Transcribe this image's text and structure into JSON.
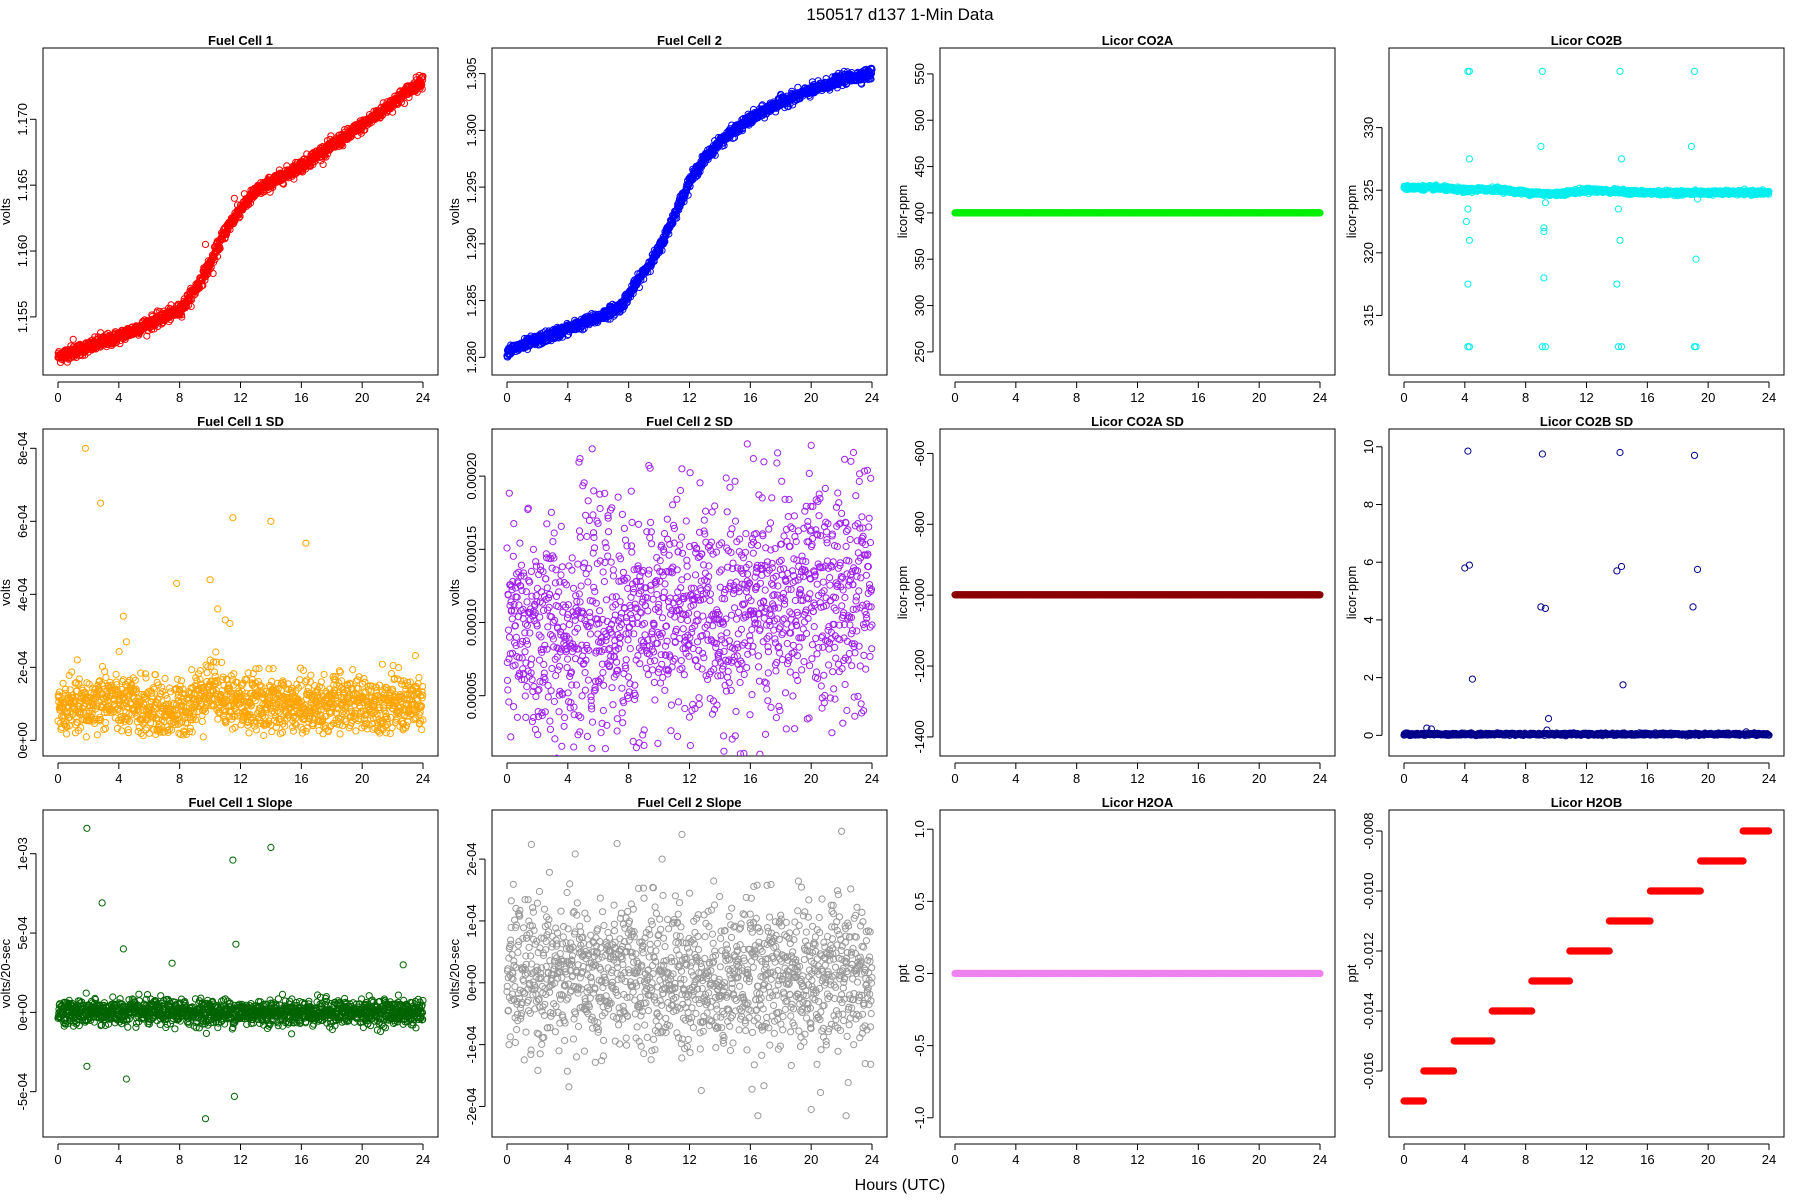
{
  "figure": {
    "title": "150517   d137   1-Min Data",
    "xlabel": "Hours (UTC)"
  },
  "chart_data": [
    {
      "type": "scatter",
      "title": "Fuel Cell 1",
      "ylabel": "volts",
      "color": "#ff0000",
      "xlim": [
        0,
        24
      ],
      "ylim": [
        1.1515,
        1.1745
      ],
      "xticks": [
        0,
        4,
        8,
        12,
        16,
        20,
        24
      ],
      "yticks": [
        1.155,
        1.16,
        1.165,
        1.17
      ],
      "ytick_labels": [
        "1.155",
        "1.160",
        "1.165",
        "1.170"
      ],
      "series": [
        {
          "pattern": "curve",
          "x": [
            0,
            2,
            4,
            6,
            8,
            9,
            10,
            11,
            12,
            13,
            16,
            20,
            24
          ],
          "y": [
            1.152,
            1.1527,
            1.1535,
            1.1545,
            1.1555,
            1.157,
            1.159,
            1.1615,
            1.1632,
            1.1645,
            1.1665,
            1.1695,
            1.173
          ],
          "noise": 0.00025
        }
      ],
      "outliers": {
        "x": [
          1.0,
          2.8,
          9.7,
          11.6,
          11.8,
          10.2
        ],
        "y": [
          1.1533,
          1.1538,
          1.1605,
          1.164,
          1.1635,
          1.1583
        ]
      }
    },
    {
      "type": "scatter",
      "title": "Fuel Cell 2",
      "ylabel": "volts",
      "color": "#0000ff",
      "xlim": [
        0,
        24
      ],
      "ylim": [
        1.2795,
        1.3062
      ],
      "xticks": [
        0,
        4,
        8,
        12,
        16,
        20,
        24
      ],
      "yticks": [
        1.28,
        1.285,
        1.29,
        1.295,
        1.3,
        1.305
      ],
      "ytick_labels": [
        "1.280",
        "1.285",
        "1.290",
        "1.295",
        "1.300",
        "1.305"
      ],
      "series": [
        {
          "pattern": "curve",
          "x": [
            0,
            2,
            4,
            6,
            7.5,
            8,
            9,
            10,
            11,
            12,
            13,
            14,
            16,
            18,
            20,
            22,
            24
          ],
          "y": [
            1.2805,
            1.2815,
            1.2825,
            1.2835,
            1.2845,
            1.2855,
            1.2875,
            1.2895,
            1.2925,
            1.2955,
            1.2975,
            1.299,
            1.301,
            1.3025,
            1.3035,
            1.3045,
            1.305
          ],
          "noise": 0.00025
        }
      ],
      "outliers": {
        "x": [],
        "y": []
      }
    },
    {
      "type": "scatter",
      "title": "Licor CO2A",
      "ylabel": "licor-ppm",
      "color": "#00ee00",
      "xlim": [
        0,
        24
      ],
      "ylim": [
        238,
        565
      ],
      "xticks": [
        0,
        4,
        8,
        12,
        16,
        20,
        24
      ],
      "yticks": [
        250,
        300,
        350,
        400,
        450,
        500,
        550
      ],
      "ytick_labels": [
        "250",
        "300",
        "350",
        "400",
        "450",
        "500",
        "550"
      ],
      "series": [
        {
          "pattern": "constant",
          "x": [
            0,
            24
          ],
          "y": [
            400,
            400
          ],
          "noise": 0
        }
      ],
      "outliers": {
        "x": [],
        "y": []
      }
    },
    {
      "type": "scatter",
      "title": "Licor CO2B",
      "ylabel": "licor-ppm",
      "color": "#00eeee",
      "xlim": [
        0,
        24
      ],
      "ylim": [
        311.2,
        335.4
      ],
      "xticks": [
        0,
        4,
        8,
        12,
        16,
        20,
        24
      ],
      "yticks": [
        315,
        320,
        325,
        330
      ],
      "ytick_labels": [
        "315",
        "320",
        "325",
        "330"
      ],
      "series": [
        {
          "pattern": "curve",
          "x": [
            0,
            2,
            4,
            6,
            8,
            10,
            12,
            14,
            16,
            18,
            20,
            24
          ],
          "y": [
            325.2,
            325.2,
            325.0,
            325.1,
            324.8,
            324.7,
            325.0,
            324.9,
            324.8,
            324.8,
            324.8,
            324.8
          ],
          "noise": 0.08
        }
      ],
      "outliers": {
        "x": [
          4.2,
          4.2,
          4.3,
          4.3,
          4.2,
          4.1,
          4.2,
          4.3,
          4.3,
          9.1,
          9.1,
          9.2,
          9.2,
          9.2,
          9.3,
          9.3,
          9.0,
          14.1,
          14.2,
          14.2,
          14.1,
          14.3,
          14.3,
          14.0,
          19.1,
          19.1,
          19.2,
          19.3,
          19.2,
          18.9
        ],
        "y": [
          312.5,
          334.5,
          321.0,
          327.5,
          323.5,
          322.5,
          317.5,
          312.5,
          334.5,
          312.5,
          334.5,
          322.0,
          318.0,
          321.7,
          324.0,
          312.5,
          328.5,
          312.5,
          334.5,
          321.0,
          323.5,
          327.5,
          312.5,
          317.5,
          312.5,
          334.5,
          319.5,
          324.3,
          312.5,
          328.5
        ]
      }
    },
    {
      "type": "scatter",
      "title": "Fuel Cell 1 SD",
      "ylabel": "volts",
      "color": "#ffa500",
      "xlim": [
        0,
        24
      ],
      "ylim": [
        -1e-05,
        0.00082
      ],
      "xticks": [
        0,
        4,
        8,
        12,
        16,
        20,
        24
      ],
      "yticks": [
        0,
        0.0002,
        0.0004,
        0.0006,
        0.0008
      ],
      "ytick_labels": [
        "0e+00",
        "2e-04",
        "4e-04",
        "6e-04",
        "8e-04"
      ],
      "series": [
        {
          "pattern": "curve",
          "x": [
            0,
            2,
            3,
            4,
            6,
            8,
            9,
            10,
            11,
            12,
            16,
            20,
            24
          ],
          "y": [
            8.5e-05,
            9e-05,
            0.00012,
            0.0001,
            8.5e-05,
            8e-05,
            0.00011,
            0.00015,
            0.00012,
            0.0001,
            9.5e-05,
            0.0001,
            0.0001
          ],
          "noise": 4e-05
        }
      ],
      "outliers": {
        "x": [
          1.8,
          2.8,
          11.5,
          14.0,
          16.3,
          10.0,
          10.5,
          4.3,
          4.5,
          11.0,
          7.8,
          11.3
        ],
        "y": [
          0.0008,
          0.00065,
          0.00061,
          0.0006,
          0.00054,
          0.00044,
          0.00036,
          0.00034,
          0.00027,
          0.00033,
          0.00043,
          0.00032
        ]
      }
    },
    {
      "type": "scatter",
      "title": "Fuel Cell 2 SD",
      "ylabel": "volts",
      "color": "#a020f0",
      "xlim": [
        0,
        24
      ],
      "ylim": [
        1.7e-05,
        0.000224
      ],
      "xticks": [
        0,
        4,
        8,
        12,
        16,
        20,
        24
      ],
      "yticks": [
        5e-05,
        0.0001,
        0.00015,
        0.0002
      ],
      "ytick_labels": [
        "0.00005",
        "0.00010",
        "0.00015",
        "0.00020"
      ],
      "series": [
        {
          "pattern": "scatter",
          "x": [
            0,
            6,
            12,
            18,
            24
          ],
          "y": [
            9e-05,
            9.8e-05,
            0.000105,
            0.000112,
            0.00012
          ],
          "noise": 3.8e-05
        }
      ],
      "outliers": {
        "x": [
          15.8,
          20,
          16.2,
          4.8,
          11.5,
          5.7
        ],
        "y": [
          0.000222,
          0.000221,
          0.000212,
          0.000212,
          0.000205,
          0.00019
        ]
      }
    },
    {
      "type": "scatter",
      "title": "Licor CO2A SD",
      "ylabel": "licor-ppm",
      "color": "#8b0000",
      "xlim": [
        0,
        24
      ],
      "ylim": [
        -1420,
        -565
      ],
      "xticks": [
        0,
        4,
        8,
        12,
        16,
        20,
        24
      ],
      "yticks": [
        -1400,
        -1200,
        -1000,
        -800,
        -600
      ],
      "ytick_labels": [
        "-1400",
        "-1200",
        "-1000",
        "-800",
        "-600"
      ],
      "series": [
        {
          "pattern": "constant",
          "x": [
            0,
            24
          ],
          "y": [
            -999,
            -999
          ],
          "noise": 0
        }
      ],
      "outliers": {
        "x": [],
        "y": []
      }
    },
    {
      "type": "scatter",
      "title": "Licor CO2B SD",
      "ylabel": "licor-ppm",
      "color": "#00008b",
      "xlim": [
        0,
        24
      ],
      "ylim": [
        -0.3,
        10.2
      ],
      "xticks": [
        0,
        4,
        8,
        12,
        16,
        20,
        24
      ],
      "yticks": [
        0,
        2,
        4,
        6,
        8,
        10
      ],
      "ytick_labels": [
        "0",
        "2",
        "4",
        "6",
        "8",
        "10"
      ],
      "series": [
        {
          "pattern": "constant",
          "x": [
            0,
            24
          ],
          "y": [
            0.04,
            0.04
          ],
          "noise": 0.02
        }
      ],
      "outliers": {
        "x": [
          4.2,
          9.1,
          14.2,
          19.1,
          4.0,
          4.3,
          14.0,
          14.3,
          19.3,
          9.0,
          9.3,
          19.0,
          4.5,
          14.4,
          9.5,
          1.5,
          1.8,
          9.4,
          22.5
        ],
        "y": [
          9.85,
          9.75,
          9.8,
          9.7,
          5.8,
          5.9,
          5.7,
          5.85,
          5.75,
          4.45,
          4.4,
          4.45,
          1.95,
          1.75,
          0.58,
          0.25,
          0.22,
          0.18,
          0.12
        ]
      }
    },
    {
      "type": "scatter",
      "title": "Fuel Cell 1 Slope",
      "ylabel": "volts/20-sec",
      "color": "#006400",
      "xlim": [
        0,
        24
      ],
      "ylim": [
        -0.00071,
        0.0012
      ],
      "xticks": [
        0,
        4,
        8,
        12,
        16,
        20,
        24
      ],
      "yticks": [
        -0.0005,
        0,
        0.0005,
        0.001
      ],
      "ytick_labels": [
        "-5e-04",
        "0e+00",
        "5e-04",
        "1e-03"
      ],
      "series": [
        {
          "pattern": "scatter",
          "x": [
            0,
            24
          ],
          "y": [
            0,
            0
          ],
          "noise": 4e-05
        }
      ],
      "outliers": {
        "x": [
          1.9,
          11.5,
          14.0,
          2.9,
          4.3,
          7.5,
          11.7,
          1.9,
          9.7,
          4.5,
          11.6,
          22.7
        ],
        "y": [
          0.00116,
          0.00096,
          0.00104,
          0.00069,
          0.0004,
          0.00031,
          0.00043,
          -0.00034,
          -0.00067,
          -0.00042,
          -0.00053,
          0.0003
        ]
      }
    },
    {
      "type": "scatter",
      "title": "Fuel Cell 2 Slope",
      "ylabel": "volts/20-sec",
      "color": "#999999",
      "xlim": [
        0,
        24
      ],
      "ylim": [
        -0.00023,
        0.00026
      ],
      "xticks": [
        0,
        4,
        8,
        12,
        16,
        20,
        24
      ],
      "yticks": [
        -0.0002,
        -0.0001,
        0,
        0.0001,
        0.0002
      ],
      "ytick_labels": [
        "-2e-04",
        "-1e-04",
        "0e+00",
        "1e-04",
        "2e-04"
      ],
      "series": [
        {
          "pattern": "scatter",
          "x": [
            0,
            6,
            12,
            18,
            24
          ],
          "y": [
            1e-05,
            1e-05,
            1e-05,
            1e-05,
            1e-05
          ],
          "noise": 6e-05
        }
      ],
      "outliers": {
        "x": [
          11.5,
          22,
          16.5,
          20,
          22.3,
          10.2
        ],
        "y": [
          0.00024,
          0.000245,
          -0.000215,
          -0.000205,
          -0.000215,
          0.0002
        ]
      }
    },
    {
      "type": "scatter",
      "title": "Licor H2OA",
      "ylabel": "ppt",
      "color": "#ee82ee",
      "xlim": [
        0,
        24
      ],
      "ylim": [
        -1.05,
        1.05
      ],
      "xticks": [
        0,
        4,
        8,
        12,
        16,
        20,
        24
      ],
      "yticks": [
        -1,
        -0.5,
        0,
        0.5,
        1
      ],
      "ytick_labels": [
        "-1.0",
        "-0.5",
        "0.0",
        "0.5",
        "1.0"
      ],
      "series": [
        {
          "pattern": "constant",
          "x": [
            0,
            24
          ],
          "y": [
            0,
            0
          ],
          "noise": 0
        }
      ],
      "outliers": {
        "x": [],
        "y": []
      }
    },
    {
      "type": "scatter",
      "title": "Licor H2OB",
      "ylabel": "ppt",
      "color": "#ff0000",
      "xlim": [
        0,
        24
      ],
      "ylim": [
        -0.0178,
        -0.0077
      ],
      "xticks": [
        0,
        4,
        8,
        12,
        16,
        20,
        24
      ],
      "yticks": [
        -0.016,
        -0.014,
        -0.012,
        -0.01,
        -0.008
      ],
      "ytick_labels": [
        "-0.016",
        "-0.014",
        "-0.012",
        "-0.010",
        "-0.008"
      ],
      "series": [
        {
          "pattern": "steps",
          "steps": [
            {
              "x0": 0,
              "x1": 1.3,
              "y": -0.017
            },
            {
              "x0": 1.3,
              "x1": 3.3,
              "y": -0.016
            },
            {
              "x0": 3.3,
              "x1": 5.8,
              "y": -0.015
            },
            {
              "x0": 5.8,
              "x1": 8.4,
              "y": -0.014
            },
            {
              "x0": 8.4,
              "x1": 10.9,
              "y": -0.013
            },
            {
              "x0": 10.9,
              "x1": 13.5,
              "y": -0.012
            },
            {
              "x0": 13.5,
              "x1": 16.2,
              "y": -0.011
            },
            {
              "x0": 16.2,
              "x1": 19.5,
              "y": -0.01
            },
            {
              "x0": 19.5,
              "x1": 22.3,
              "y": -0.009
            },
            {
              "x0": 22.3,
              "x1": 24,
              "y": -0.008
            }
          ],
          "noise": 0
        }
      ],
      "outliers": {
        "x": [],
        "y": []
      }
    }
  ]
}
